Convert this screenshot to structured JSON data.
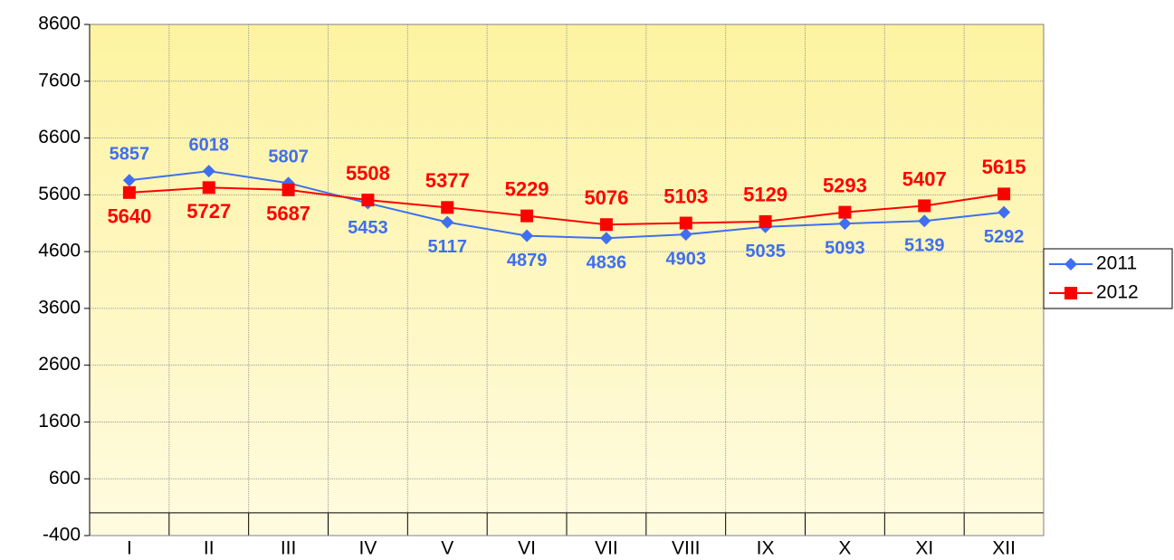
{
  "chart_data": {
    "type": "line",
    "categories": [
      "I",
      "II",
      "III",
      "IV",
      "V",
      "VI",
      "VII",
      "VIII",
      "IX",
      "X",
      "XI",
      "XII"
    ],
    "series": [
      {
        "name": "2011",
        "color": "#3f6ff0",
        "marker": "diamond",
        "values": [
          5857,
          6018,
          5807,
          5453,
          5117,
          4879,
          4836,
          4903,
          5035,
          5093,
          5139,
          5292
        ]
      },
      {
        "name": "2012",
        "color": "#ff0000",
        "marker": "square",
        "values": [
          5640,
          5727,
          5687,
          5508,
          5377,
          5229,
          5076,
          5103,
          5129,
          5293,
          5407,
          5615
        ]
      }
    ],
    "ylim": [
      -400,
      8600
    ],
    "yticks": [
      -400,
      600,
      1600,
      2600,
      3600,
      4600,
      5600,
      6600,
      7600,
      8600
    ],
    "grid": true,
    "legend": "right"
  }
}
